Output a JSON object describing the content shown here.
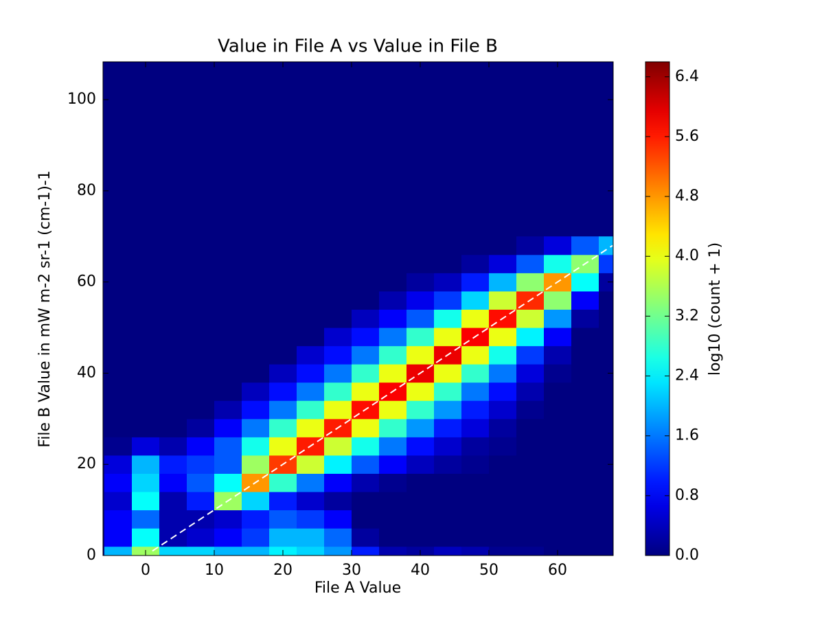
{
  "chart_data": {
    "type": "hexbin",
    "title": "Value in File A vs Value in File B",
    "xlabel": "File A Value",
    "ylabel": "File B Value in mW m-2 sr-1 (cm-1)-1",
    "colorbar_label": "log10 (count + 1)",
    "colormap": "jet",
    "xlim": [
      -6.2,
      68.1
    ],
    "ylim": [
      0,
      108.3
    ],
    "xticks": [
      0,
      10,
      20,
      30,
      40,
      50,
      60
    ],
    "yticks": [
      0,
      20,
      40,
      60,
      80,
      100
    ],
    "clim": [
      0,
      6.6
    ],
    "cticks": [
      {
        "value": 0,
        "label": "0.0"
      },
      0.8,
      1.6,
      2.4,
      3.2,
      {
        "value": 4,
        "label": "4.0"
      },
      4.8,
      5.6,
      6.4
    ],
    "cell_size": [
      4,
      4
    ],
    "x": [
      -4,
      0,
      4,
      8,
      12,
      16,
      20,
      24,
      28,
      32,
      36,
      40,
      44,
      48,
      52,
      56,
      60,
      64,
      68
    ],
    "y": [
      0,
      4,
      8,
      12,
      16,
      20,
      24,
      28,
      32,
      36,
      40,
      44,
      48,
      52,
      56,
      60,
      64,
      68
    ],
    "values": [
      [
        2.0,
        3.5,
        2.2,
        2.2,
        2.0,
        2.0,
        2.4,
        2.2,
        1.8,
        1.0,
        0.3,
        0.2,
        0.4,
        0.3,
        0.1,
        0.1,
        0,
        0,
        0
      ],
      [
        0.8,
        2.5,
        0.3,
        0.5,
        0.8,
        1.2,
        2.0,
        2.0,
        1.5,
        0.2,
        0,
        0,
        0,
        0,
        0,
        0,
        0,
        0,
        0
      ],
      [
        0.8,
        1.5,
        0.3,
        0.3,
        0.5,
        1.0,
        1.4,
        1.2,
        0.8,
        0,
        0,
        0,
        0,
        0,
        0,
        0,
        0,
        0,
        0
      ],
      [
        0.5,
        2.5,
        0.3,
        1.0,
        3.5,
        2.2,
        1.0,
        0.5,
        0.2,
        0,
        0,
        0,
        0,
        0,
        0,
        0,
        0,
        0,
        0
      ],
      [
        0.8,
        2.2,
        0.8,
        1.4,
        2.5,
        4.8,
        2.8,
        1.6,
        0.8,
        0.3,
        0.1,
        0,
        0,
        0,
        0,
        0,
        0,
        0,
        0
      ],
      [
        0.6,
        2.0,
        1.0,
        1.2,
        1.4,
        3.5,
        5.4,
        3.8,
        2.4,
        1.4,
        0.8,
        0.4,
        0.2,
        0.1,
        0,
        0,
        0,
        0,
        0
      ],
      [
        0.1,
        0.6,
        0.3,
        0.8,
        1.4,
        2.6,
        4.0,
        5.6,
        3.8,
        2.6,
        1.6,
        0.9,
        0.5,
        0.2,
        0.1,
        0,
        0,
        0,
        0
      ],
      [
        0,
        0,
        0,
        0.2,
        0.8,
        1.6,
        2.8,
        4.0,
        5.6,
        4.0,
        2.8,
        1.8,
        1.0,
        0.6,
        0.2,
        0,
        0,
        0,
        0
      ],
      [
        0,
        0,
        0,
        0,
        0.3,
        0.9,
        1.6,
        2.8,
        4.0,
        5.7,
        4.0,
        2.8,
        1.8,
        1.0,
        0.5,
        0.1,
        0,
        0,
        0
      ],
      [
        0,
        0,
        0,
        0,
        0,
        0.4,
        0.9,
        1.6,
        2.8,
        4.0,
        5.8,
        4.0,
        2.8,
        1.6,
        0.9,
        0.3,
        0,
        0,
        0
      ],
      [
        0,
        0,
        0,
        0,
        0,
        0,
        0.4,
        0.9,
        1.6,
        2.8,
        4.0,
        5.9,
        4.0,
        2.8,
        1.6,
        0.6,
        0.1,
        0,
        0
      ],
      [
        0,
        0,
        0,
        0,
        0,
        0,
        0,
        0.5,
        0.9,
        1.6,
        2.8,
        4.0,
        5.9,
        4.0,
        2.6,
        1.2,
        0.3,
        0,
        0
      ],
      [
        0,
        0,
        0,
        0,
        0,
        0,
        0,
        0,
        0.5,
        0.9,
        1.6,
        2.8,
        4.0,
        5.8,
        4.0,
        2.4,
        0.8,
        0,
        0
      ],
      [
        0,
        0,
        0,
        0,
        0,
        0,
        0,
        0,
        0,
        0.4,
        0.8,
        1.4,
        2.6,
        4.0,
        5.7,
        3.8,
        1.8,
        0.2,
        0
      ],
      [
        0,
        0,
        0,
        0,
        0,
        0,
        0,
        0,
        0,
        0,
        0.3,
        0.7,
        1.2,
        2.2,
        3.8,
        5.5,
        3.4,
        0.8,
        0
      ],
      [
        0,
        0,
        0,
        0,
        0,
        0,
        0,
        0,
        0,
        0,
        0,
        0.2,
        0.4,
        1.0,
        2.0,
        3.4,
        4.8,
        2.5,
        0.2
      ],
      [
        0,
        0,
        0,
        0,
        0,
        0,
        0,
        0,
        0,
        0,
        0,
        0,
        0,
        0.2,
        0.6,
        1.4,
        2.6,
        3.4,
        1.2
      ],
      [
        0,
        0,
        0,
        0,
        0,
        0,
        0,
        0,
        0,
        0,
        0,
        0,
        0,
        0,
        0,
        0.2,
        0.6,
        1.4,
        2.0
      ]
    ],
    "reference_line": {
      "x": [
        1,
        68
      ],
      "y": [
        1,
        68
      ],
      "color": "#ffffff",
      "dashed": true
    }
  }
}
